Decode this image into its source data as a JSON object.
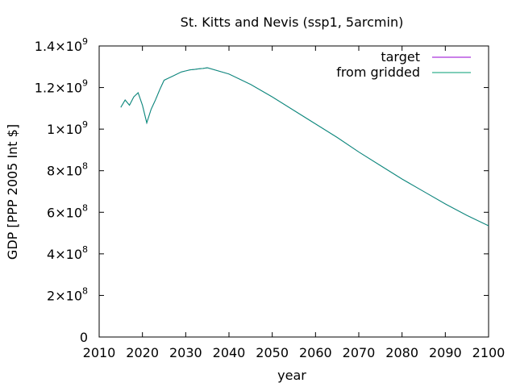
{
  "chart_data": {
    "type": "line",
    "title": "St. Kitts and Nevis (ssp1, 5arcmin)",
    "xlabel": "year",
    "ylabel": "GDP [PPP 2005 Int $]",
    "xlim": [
      2010,
      2100
    ],
    "ylim": [
      0,
      1400000000
    ],
    "grid": false,
    "legend_position": "top-right",
    "x_ticks": [
      {
        "value": 2010,
        "label": "2010"
      },
      {
        "value": 2020,
        "label": "2020"
      },
      {
        "value": 2030,
        "label": "2030"
      },
      {
        "value": 2040,
        "label": "2040"
      },
      {
        "value": 2050,
        "label": "2050"
      },
      {
        "value": 2060,
        "label": "2060"
      },
      {
        "value": 2070,
        "label": "2070"
      },
      {
        "value": 2080,
        "label": "2080"
      },
      {
        "value": 2090,
        "label": "2090"
      },
      {
        "value": 2100,
        "label": "2100"
      }
    ],
    "y_ticks": [
      {
        "value": 0,
        "label": "0",
        "exp": ""
      },
      {
        "value": 200000000,
        "label": "2×10",
        "exp": "8"
      },
      {
        "value": 400000000,
        "label": "4×10",
        "exp": "8"
      },
      {
        "value": 600000000,
        "label": "6×10",
        "exp": "8"
      },
      {
        "value": 800000000,
        "label": "8×10",
        "exp": "8"
      },
      {
        "value": 1000000000,
        "label": "1×10",
        "exp": "9"
      },
      {
        "value": 1200000000,
        "label": "1.2×10",
        "exp": "9"
      },
      {
        "value": 1400000000,
        "label": "1.4×10",
        "exp": "9"
      }
    ],
    "series": [
      {
        "name": "target",
        "color": "#9400d3",
        "x": [
          2015,
          2016,
          2017,
          2018,
          2019,
          2020,
          2021,
          2022,
          2023,
          2024,
          2025,
          2026,
          2027,
          2028,
          2029,
          2030,
          2031,
          2032,
          2033,
          2034,
          2035,
          2040,
          2045,
          2050,
          2055,
          2060,
          2065,
          2070,
          2075,
          2080,
          2085,
          2090,
          2095,
          2100
        ],
        "y": [
          1105000000,
          1140000000,
          1115000000,
          1155000000,
          1175000000,
          1115000000,
          1030000000,
          1095000000,
          1140000000,
          1190000000,
          1235000000,
          1245000000,
          1255000000,
          1265000000,
          1275000000,
          1280000000,
          1285000000,
          1287000000,
          1290000000,
          1292000000,
          1295000000,
          1265000000,
          1215000000,
          1155000000,
          1090000000,
          1025000000,
          960000000,
          890000000,
          825000000,
          760000000,
          700000000,
          640000000,
          585000000,
          535000000
        ]
      },
      {
        "name": "from gridded",
        "color": "#009e73",
        "x": [
          2015,
          2016,
          2017,
          2018,
          2019,
          2020,
          2021,
          2022,
          2023,
          2024,
          2025,
          2026,
          2027,
          2028,
          2029,
          2030,
          2031,
          2032,
          2033,
          2034,
          2035,
          2040,
          2045,
          2050,
          2055,
          2060,
          2065,
          2070,
          2075,
          2080,
          2085,
          2090,
          2095,
          2100
        ],
        "y": [
          1105000000,
          1140000000,
          1115000000,
          1155000000,
          1175000000,
          1115000000,
          1030000000,
          1095000000,
          1140000000,
          1190000000,
          1235000000,
          1245000000,
          1255000000,
          1265000000,
          1275000000,
          1280000000,
          1285000000,
          1287000000,
          1290000000,
          1292000000,
          1295000000,
          1265000000,
          1215000000,
          1155000000,
          1090000000,
          1025000000,
          960000000,
          890000000,
          825000000,
          760000000,
          700000000,
          640000000,
          585000000,
          535000000
        ]
      }
    ]
  }
}
